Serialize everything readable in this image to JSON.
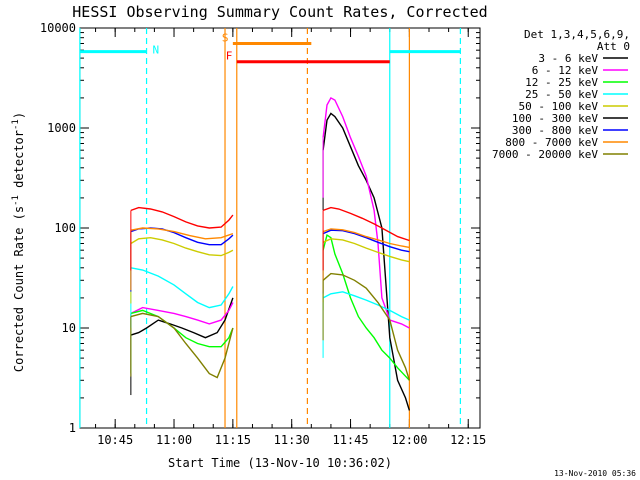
{
  "chart_data": {
    "type": "line",
    "title": "HESSI Observing Summary Count Rates, Corrected",
    "xlabel": "Start Time (13-Nov-10 10:36:02)",
    "ylabel": "Corrected Count Rate (s⁻¹ detector⁻¹)",
    "ylabel_base": "Corrected Count Rate (s",
    "ylabel_sup1": "-1",
    "ylabel_mid": " detector",
    "ylabel_sup2": "-1",
    "ylabel_end": ")",
    "yscale": "log",
    "xlim": [
      "10:36:02",
      "12:18"
    ],
    "ylim": [
      1,
      10000
    ],
    "x_ticks": [
      "10:45",
      "11:00",
      "11:15",
      "11:30",
      "11:45",
      "12:00",
      "12:15"
    ],
    "y_ticks": [
      "1",
      "10",
      "100",
      "1000",
      "10000"
    ],
    "legend_header": [
      "Det 1,3,4,5,6,9,",
      "Att 0"
    ],
    "legend_position": "right",
    "footer": "13-Nov-2010 05:36",
    "flags": [
      {
        "label": "N",
        "color": "#00ffff",
        "segments": [
          [
            "10:36",
            "10:53"
          ],
          [
            "11:55",
            "12:13"
          ]
        ],
        "level": 5800
      },
      {
        "label": "S",
        "color": "#ff8800",
        "segments": [
          [
            "11:15",
            "11:35"
          ]
        ],
        "level": 7000
      },
      {
        "label": "F",
        "color": "#ff0000",
        "segments": [
          [
            "11:16",
            "11:55"
          ]
        ],
        "level": 4600
      }
    ],
    "markers": [
      {
        "time": "10:36",
        "color": "#00ffff",
        "style": "solid"
      },
      {
        "time": "10:53",
        "color": "#00ffff",
        "style": "dashed"
      },
      {
        "time": "11:13",
        "color": "#ff8800",
        "style": "solid"
      },
      {
        "time": "11:16",
        "color": "#ff8800",
        "style": "solid"
      },
      {
        "time": "11:34",
        "color": "#ff8800",
        "style": "dashed"
      },
      {
        "time": "11:55",
        "color": "#00ffff",
        "style": "solid"
      },
      {
        "time": "12:00",
        "color": "#ff8800",
        "style": "solid"
      },
      {
        "time": "12:13",
        "color": "#00ffff",
        "style": "dashed"
      }
    ],
    "series": [
      {
        "name": "3 - 6 keV",
        "color": "#000000",
        "points": [
          [
            "10:49",
            8.5
          ],
          [
            "10:51",
            9
          ],
          [
            "10:53",
            10
          ],
          [
            "10:56",
            12
          ],
          [
            "10:59",
            11
          ],
          [
            "11:02",
            10
          ],
          [
            "11:05",
            9
          ],
          [
            "11:08",
            8
          ],
          [
            "11:11",
            9
          ],
          [
            "11:13",
            12
          ],
          [
            "11:15",
            20
          ],
          [
            "11:38",
            600
          ],
          [
            "11:39",
            1200
          ],
          [
            "11:40",
            1400
          ],
          [
            "11:41",
            1300
          ],
          [
            "11:43",
            1000
          ],
          [
            "11:45",
            650
          ],
          [
            "11:47",
            420
          ],
          [
            "11:49",
            300
          ],
          [
            "11:51",
            200
          ],
          [
            "11:53",
            100
          ],
          [
            "11:55",
            8
          ],
          [
            "11:57",
            3
          ],
          [
            "11:59",
            2
          ],
          [
            "12:00",
            1.5
          ]
        ]
      },
      {
        "name": "6 - 12 keV",
        "color": "#ff00ff",
        "points": [
          [
            "10:49",
            14
          ],
          [
            "10:52",
            16
          ],
          [
            "10:56",
            15
          ],
          [
            "11:00",
            14
          ],
          [
            "11:03",
            13
          ],
          [
            "11:06",
            12
          ],
          [
            "11:09",
            11
          ],
          [
            "11:12",
            12
          ],
          [
            "11:14",
            15
          ],
          [
            "11:15",
            18
          ],
          [
            "11:38",
            800
          ],
          [
            "11:39",
            1700
          ],
          [
            "11:40",
            2000
          ],
          [
            "11:41",
            1900
          ],
          [
            "11:43",
            1300
          ],
          [
            "11:45",
            800
          ],
          [
            "11:47",
            520
          ],
          [
            "11:49",
            330
          ],
          [
            "11:51",
            150
          ],
          [
            "11:52",
            70
          ],
          [
            "11:53",
            20
          ],
          [
            "11:55",
            12
          ],
          [
            "11:58",
            11
          ],
          [
            "12:00",
            10
          ]
        ]
      },
      {
        "name": "12 - 25 keV",
        "color": "#00ff00",
        "points": [
          [
            "10:49",
            14
          ],
          [
            "10:52",
            15
          ],
          [
            "10:56",
            13
          ],
          [
            "11:00",
            10
          ],
          [
            "11:03",
            8
          ],
          [
            "11:06",
            7
          ],
          [
            "11:09",
            6.5
          ],
          [
            "11:12",
            6.5
          ],
          [
            "11:14",
            8
          ],
          [
            "11:15",
            10
          ],
          [
            "11:38",
            60
          ],
          [
            "11:39",
            85
          ],
          [
            "11:40",
            80
          ],
          [
            "11:41",
            55
          ],
          [
            "11:43",
            35
          ],
          [
            "11:45",
            20
          ],
          [
            "11:47",
            13
          ],
          [
            "11:49",
            10
          ],
          [
            "11:51",
            8
          ],
          [
            "11:53",
            6
          ],
          [
            "11:55",
            5
          ],
          [
            "11:57",
            4
          ],
          [
            "12:00",
            3
          ]
        ]
      },
      {
        "name": "25 - 50 keV",
        "color": "#00ffff",
        "points": [
          [
            "10:49",
            40
          ],
          [
            "10:52",
            38
          ],
          [
            "10:56",
            33
          ],
          [
            "11:00",
            27
          ],
          [
            "11:03",
            22
          ],
          [
            "11:06",
            18
          ],
          [
            "11:09",
            16
          ],
          [
            "11:12",
            17
          ],
          [
            "11:14",
            22
          ],
          [
            "11:15",
            26
          ],
          [
            "11:38",
            20
          ],
          [
            "11:40",
            22
          ],
          [
            "11:43",
            23
          ],
          [
            "11:46",
            21
          ],
          [
            "11:49",
            19
          ],
          [
            "11:52",
            17
          ],
          [
            "11:55",
            15
          ],
          [
            "11:58",
            13
          ],
          [
            "12:00",
            12
          ]
        ]
      },
      {
        "name": "50 - 100 keV",
        "color": "#cccc00",
        "points": [
          [
            "10:49",
            70
          ],
          [
            "10:51",
            78
          ],
          [
            "10:54",
            80
          ],
          [
            "10:57",
            76
          ],
          [
            "11:00",
            70
          ],
          [
            "11:03",
            63
          ],
          [
            "11:06",
            58
          ],
          [
            "11:09",
            54
          ],
          [
            "11:12",
            53
          ],
          [
            "11:14",
            57
          ],
          [
            "11:15",
            60
          ],
          [
            "11:38",
            72
          ],
          [
            "11:40",
            78
          ],
          [
            "11:43",
            76
          ],
          [
            "11:46",
            70
          ],
          [
            "11:49",
            63
          ],
          [
            "11:52",
            57
          ],
          [
            "11:55",
            52
          ],
          [
            "11:58",
            48
          ],
          [
            "12:00",
            46
          ]
        ]
      },
      {
        "name": "100 - 300 keV",
        "color": "#000000",
        "points": []
      },
      {
        "name": "300 - 800 keV",
        "color": "#0000ff",
        "points": [
          [
            "10:49",
            92
          ],
          [
            "10:51",
            98
          ],
          [
            "10:54",
            100
          ],
          [
            "10:57",
            98
          ],
          [
            "11:00",
            90
          ],
          [
            "11:03",
            80
          ],
          [
            "11:06",
            72
          ],
          [
            "11:09",
            68
          ],
          [
            "11:12",
            68
          ],
          [
            "11:14",
            78
          ],
          [
            "11:15",
            85
          ],
          [
            "11:38",
            88
          ],
          [
            "11:40",
            95
          ],
          [
            "11:43",
            94
          ],
          [
            "11:46",
            88
          ],
          [
            "11:49",
            80
          ],
          [
            "11:52",
            72
          ],
          [
            "11:55",
            65
          ],
          [
            "11:58",
            60
          ],
          [
            "12:00",
            58
          ]
        ]
      },
      {
        "name": "800 - 7000 keV",
        "color": "#ff8800",
        "points": [
          [
            "10:49",
            95
          ],
          [
            "10:52",
            100
          ],
          [
            "10:56",
            98
          ],
          [
            "11:00",
            92
          ],
          [
            "11:04",
            84
          ],
          [
            "11:08",
            78
          ],
          [
            "11:12",
            80
          ],
          [
            "11:15",
            88
          ],
          [
            "11:38",
            92
          ],
          [
            "11:40",
            98
          ],
          [
            "11:43",
            96
          ],
          [
            "11:46",
            90
          ],
          [
            "11:49",
            82
          ],
          [
            "11:52",
            76
          ],
          [
            "11:55",
            70
          ],
          [
            "11:58",
            66
          ],
          [
            "12:00",
            64
          ]
        ]
      },
      {
        "name": "7000 - 20000 keV",
        "color": "#808000",
        "points": [
          [
            "10:49",
            13
          ],
          [
            "10:52",
            14
          ],
          [
            "10:56",
            13
          ],
          [
            "11:00",
            10
          ],
          [
            "11:03",
            7
          ],
          [
            "11:06",
            5
          ],
          [
            "11:09",
            3.5
          ],
          [
            "11:11",
            3.2
          ],
          [
            "11:13",
            5
          ],
          [
            "11:15",
            10
          ],
          [
            "11:38",
            30
          ],
          [
            "11:40",
            35
          ],
          [
            "11:43",
            34
          ],
          [
            "11:46",
            30
          ],
          [
            "11:49",
            25
          ],
          [
            "11:52",
            18
          ],
          [
            "11:55",
            12
          ],
          [
            "11:57",
            6
          ],
          [
            "11:59",
            4
          ],
          [
            "12:00",
            3
          ]
        ]
      },
      {
        "name": "",
        "color": "#ff0000",
        "points": [
          [
            "10:49",
            150
          ],
          [
            "10:51",
            160
          ],
          [
            "10:54",
            155
          ],
          [
            "10:57",
            145
          ],
          [
            "11:00",
            130
          ],
          [
            "11:03",
            115
          ],
          [
            "11:06",
            105
          ],
          [
            "11:09",
            100
          ],
          [
            "11:12",
            102
          ],
          [
            "11:14",
            120
          ],
          [
            "11:15",
            135
          ],
          [
            "11:38",
            150
          ],
          [
            "11:40",
            160
          ],
          [
            "11:42",
            155
          ],
          [
            "11:45",
            140
          ],
          [
            "11:48",
            125
          ],
          [
            "11:51",
            110
          ],
          [
            "11:54",
            95
          ],
          [
            "11:57",
            82
          ],
          [
            "12:00",
            75
          ]
        ]
      }
    ]
  }
}
